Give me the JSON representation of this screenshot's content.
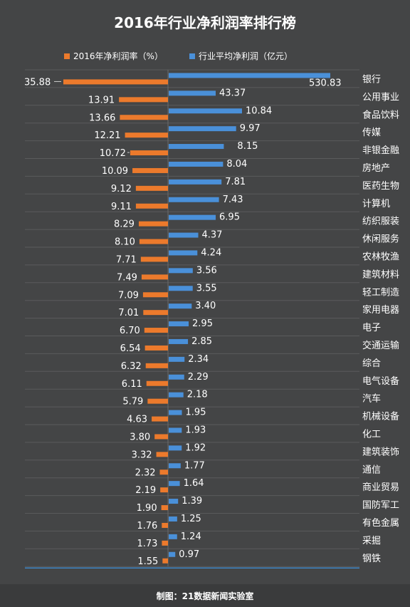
{
  "chart_data": {
    "type": "bar",
    "title": "2016年行业净利润率排行榜",
    "categories": [
      "银行",
      "公用事业",
      "食品饮料",
      "传媒",
      "非银金融",
      "房地产",
      "医药生物",
      "计算机",
      "纺织服装",
      "休闲服务",
      "农林牧渔",
      "建筑材料",
      "轻工制造",
      "家用电器",
      "电子",
      "交通运输",
      "综合",
      "电气设备",
      "汽车",
      "机械设备",
      "化工",
      "建筑装饰",
      "通信",
      "商业贸易",
      "国防军工",
      "有色金属",
      "采掘",
      "钢铁"
    ],
    "series": [
      {
        "name": "2016年净利润率（%）",
        "color": "#ec7a2c",
        "values": [
          35.88,
          13.91,
          13.66,
          12.21,
          10.72,
          10.09,
          9.12,
          9.11,
          8.29,
          8.1,
          7.71,
          7.49,
          7.09,
          7.01,
          6.7,
          6.54,
          6.32,
          6.11,
          5.79,
          4.63,
          3.8,
          3.32,
          2.32,
          2.19,
          1.9,
          1.76,
          1.73,
          1.55
        ],
        "labels": [
          "35.88",
          "13.91",
          "13.66",
          "12.21",
          "10.72",
          "10.09",
          "9.12",
          "9.11",
          "8.29",
          "8.10",
          "7.71",
          "7.49",
          "7.09",
          "7.01",
          "6.70",
          "6.54",
          "6.32",
          "6.11",
          "5.79",
          "4.63",
          "3.80",
          "3.32",
          "2.32",
          "2.19",
          "1.90",
          "1.76",
          "1.73",
          "1.55"
        ]
      },
      {
        "name": "行业平均净利润（亿元）",
        "color": "#4a90d9",
        "values": [
          530.83,
          43.37,
          10.84,
          9.97,
          8.15,
          8.04,
          7.81,
          7.43,
          6.95,
          4.37,
          4.24,
          3.56,
          3.55,
          3.4,
          2.95,
          2.85,
          2.34,
          2.29,
          2.18,
          1.95,
          1.93,
          1.92,
          1.77,
          1.64,
          1.39,
          1.25,
          1.24,
          0.97
        ],
        "labels": [
          "530.83",
          "43.37",
          "10.84",
          "9.97",
          "8.15",
          "8.04",
          "7.81",
          "7.43",
          "6.95",
          "4.37",
          "4.24",
          "3.56",
          "3.55",
          "3.40",
          "2.95",
          "2.85",
          "2.34",
          "2.29",
          "2.18",
          "1.95",
          "1.93",
          "1.92",
          "1.77",
          "1.64",
          "1.39",
          "1.25",
          "1.24",
          "0.97"
        ]
      }
    ],
    "legend_position": "top",
    "grid": true,
    "footer": "制图：21数据新闻实验室"
  },
  "colors": {
    "background": "#444546",
    "grid": "#5a5b5c",
    "axis": "#3d85c6"
  }
}
